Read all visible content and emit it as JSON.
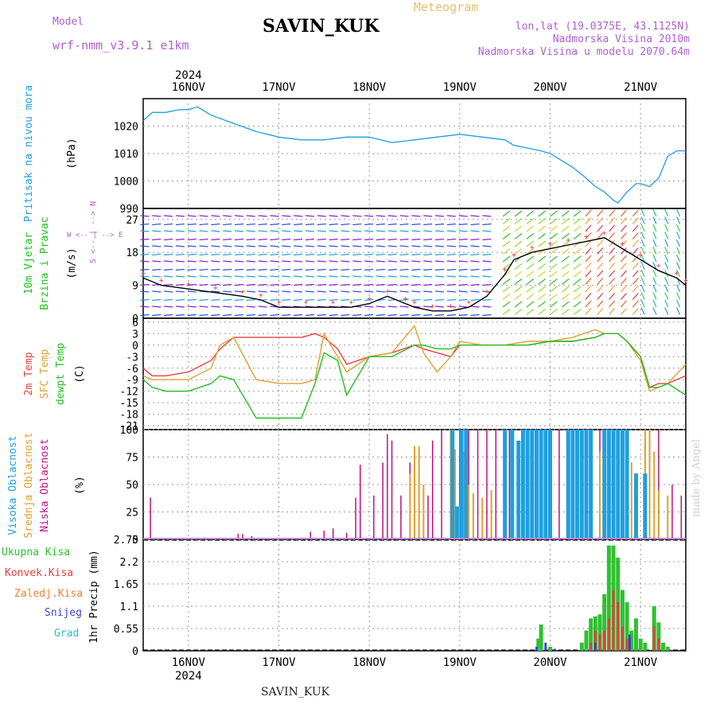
{
  "header": {
    "station": "SAVIN_KUK",
    "meteogram": "Meteogram",
    "model_label": "Model",
    "model_name": "wrf-nmm_v3.9.1 e1km",
    "lonlat": "lon,lat (19.0375E, 43.1125N)",
    "elevation": "Nadmorska Visina 2010m",
    "elevation_model": "Nadmorska Visina u modelu 2070.64m"
  },
  "footer": {
    "station": "SAVIN_KUK",
    "credit": "made by Angel"
  },
  "colors": {
    "pressure": "#1e9fe0",
    "temp2m": "#e84040",
    "sfc": "#e0a030",
    "dewpt": "#20c020",
    "high_cloud": "#1e9fe0",
    "mid_cloud": "#e0a030",
    "low_cloud": "#c01080",
    "total_precip": "#30c030",
    "conv_precip": "#e04040",
    "frozen_precip": "#f08030",
    "snow": "#4040d0",
    "graupel": "#30c0c0"
  },
  "chart_data": [
    {
      "type": "line",
      "id": "pressure",
      "ylabel_title": "Pritisak na nivou mora",
      "ylabel_unit": "(hPa)",
      "year": "2024",
      "ylim": [
        990,
        1030
      ],
      "yticks": [
        "990",
        "1000",
        "1010",
        "1020"
      ],
      "ytick_values": [
        990,
        1000,
        1010,
        1020
      ],
      "x_range_days": [
        15.5,
        21.5
      ],
      "days": [
        "16NOV",
        "17NOV",
        "18NOV",
        "19NOV",
        "20NOV",
        "21NOV"
      ],
      "x": [
        15.5,
        15.6,
        15.75,
        15.9,
        16.0,
        16.1,
        16.25,
        16.5,
        16.75,
        17.0,
        17.25,
        17.5,
        17.75,
        18.0,
        18.25,
        18.5,
        18.75,
        19.0,
        19.25,
        19.5,
        19.6,
        19.75,
        19.9,
        20.0,
        20.1,
        20.25,
        20.4,
        20.5,
        20.6,
        20.7,
        20.75,
        20.85,
        20.95,
        21.0,
        21.1,
        21.2,
        21.3,
        21.4,
        21.5
      ],
      "values": [
        1022,
        1025,
        1025,
        1026,
        1026,
        1027,
        1024,
        1021,
        1018,
        1016,
        1015,
        1015,
        1016,
        1016,
        1014,
        1015,
        1016,
        1017,
        1016,
        1015,
        1013,
        1012,
        1011,
        1010,
        1008,
        1005,
        1001,
        998,
        996,
        993,
        992,
        996,
        999,
        999,
        998,
        1001,
        1009,
        1011,
        1011
      ]
    },
    {
      "type": "line",
      "id": "wind",
      "ylabel_title": "10m Vjetar",
      "ylabel_title2": "Brzina i Pravac",
      "ylabel_unit": "(m/s)",
      "compass_ns": "S <-- | --> N",
      "compass_we": "W <-- | --> E",
      "ylim": [
        0,
        30
      ],
      "yticks": [
        "0",
        "9",
        "18",
        "27"
      ],
      "ytick_values": [
        0,
        9,
        18,
        27
      ],
      "x": [
        15.5,
        15.7,
        16.0,
        16.3,
        16.6,
        16.8,
        17.0,
        17.3,
        17.6,
        17.8,
        18.0,
        18.2,
        18.4,
        18.5,
        18.7,
        18.9,
        19.1,
        19.3,
        19.5,
        19.6,
        19.8,
        20.0,
        20.2,
        20.4,
        20.6,
        20.8,
        21.0,
        21.2,
        21.4,
        21.5
      ],
      "values": [
        11,
        9,
        8,
        7,
        6,
        5,
        3,
        3,
        3,
        3,
        4,
        6,
        4,
        3,
        2,
        2,
        3,
        6,
        12,
        16,
        18,
        19,
        20,
        21,
        22,
        19,
        16,
        13,
        11,
        9
      ]
    },
    {
      "type": "line",
      "id": "temperature",
      "ylabel_t2": "2m Temp",
      "ylabel_sfc": "SFC Temp",
      "ylabel_dew": "dewpt Temp",
      "ylabel_unit": "(C)",
      "ylim": [
        -22,
        7
      ],
      "yticks": [
        "-21",
        "-18",
        "-15",
        "-12",
        "-9",
        "-6",
        "-3",
        "0",
        "3",
        "6"
      ],
      "ytick_values": [
        -21,
        -18,
        -15,
        -12,
        -9,
        -6,
        -3,
        0,
        3,
        6
      ],
      "x": [
        15.5,
        15.6,
        15.75,
        16.0,
        16.25,
        16.35,
        16.5,
        16.75,
        17.0,
        17.25,
        17.4,
        17.5,
        17.65,
        17.75,
        18.0,
        18.25,
        18.5,
        18.6,
        18.75,
        18.9,
        19.0,
        19.25,
        19.5,
        19.75,
        20.0,
        20.25,
        20.5,
        20.6,
        20.75,
        20.85,
        21.0,
        21.1,
        21.2,
        21.3,
        21.5
      ],
      "series": [
        {
          "name": "2m Temp",
          "values": [
            -6,
            -8,
            -8,
            -7,
            -4,
            -1,
            2,
            2,
            2,
            2,
            3,
            2,
            -1,
            -5,
            -3,
            -2,
            0,
            -1,
            -2,
            -3,
            0,
            0,
            0,
            0,
            1,
            1,
            2,
            3,
            3,
            1,
            -3,
            -11,
            -10,
            -10,
            -8
          ]
        },
        {
          "name": "SFC Temp",
          "values": [
            -8,
            -9,
            -9,
            -9,
            -6,
            0,
            2,
            -9,
            -10,
            -10,
            -9,
            3,
            -3,
            -7,
            -3,
            -2,
            5,
            -2,
            -7,
            -3,
            1,
            0,
            0,
            1,
            1,
            2,
            4,
            3,
            3,
            1,
            -4,
            -12,
            -11,
            -10,
            -5
          ]
        },
        {
          "name": "dewpt Temp",
          "values": [
            -9,
            -11,
            -12,
            -12,
            -10,
            -8,
            -9,
            -19,
            -19,
            -19,
            -10,
            -2,
            -4,
            -13,
            -3,
            -3,
            0,
            0,
            -1,
            -1,
            0,
            0,
            0,
            0,
            1,
            1,
            2,
            3,
            3,
            1,
            -3,
            -11,
            -11,
            -10,
            -13
          ]
        }
      ]
    },
    {
      "type": "bar",
      "id": "clouds",
      "ylabel_high": "Visoka Oblacnost",
      "ylabel_mid": "Srednja Oblacnost",
      "ylabel_low": "Niska Oblacnost",
      "ylabel_unit": "(%)",
      "ylim": [
        0,
        100
      ],
      "yticks": [
        "0",
        "25",
        "50",
        "75",
        "100"
      ],
      "ytick_values": [
        0,
        25,
        50,
        75,
        100
      ],
      "series": [
        {
          "name": "Niska Oblacnost",
          "x": [
            15.58,
            16.55,
            16.6,
            16.7,
            17.35,
            17.5,
            17.6,
            17.75,
            17.85,
            17.9,
            18.05,
            18.15,
            18.2,
            18.25,
            18.35,
            18.45,
            18.5,
            18.55,
            18.65,
            18.7,
            18.8,
            18.9,
            19.0,
            19.1,
            19.2,
            19.3,
            19.4,
            19.55,
            19.7,
            19.9,
            20.1,
            20.3,
            20.4,
            20.55,
            20.7,
            20.85,
            20.95,
            21.05,
            21.2,
            21.35,
            21.45
          ],
          "values": [
            38,
            5,
            5,
            3,
            7,
            8,
            10,
            6,
            38,
            68,
            40,
            70,
            96,
            90,
            40,
            70,
            83,
            55,
            40,
            90,
            100,
            100,
            100,
            100,
            100,
            100,
            100,
            100,
            100,
            100,
            100,
            100,
            100,
            100,
            100,
            100,
            60,
            100,
            100,
            50,
            40
          ]
        },
        {
          "name": "Srednja Oblacnost",
          "x": [
            18.45,
            18.5,
            18.55,
            18.6,
            18.9,
            18.95,
            19.0,
            19.05,
            19.1,
            19.15,
            19.25,
            19.35,
            20.3,
            20.35,
            20.45,
            20.55,
            20.7,
            20.9,
            21.05,
            21.1,
            21.15,
            21.2,
            21.3
          ],
          "values": [
            60,
            85,
            85,
            50,
            100,
            82,
            30,
            80,
            50,
            42,
            38,
            45,
            100,
            100,
            80,
            80,
            100,
            70,
            100,
            100,
            80,
            45,
            40
          ]
        },
        {
          "name": "Visoka Oblacnost",
          "x": [
            18.92,
            18.97,
            19.02,
            19.07,
            19.5,
            19.58,
            19.65,
            19.7,
            19.75,
            19.8,
            19.85,
            19.9,
            19.95,
            20.0,
            20.2,
            20.25,
            20.3,
            20.35,
            20.4,
            20.45,
            20.6,
            20.65,
            20.7,
            20.75,
            20.8,
            20.85,
            20.95,
            21.05
          ],
          "values": [
            100,
            30,
            100,
            100,
            100,
            100,
            90,
            100,
            100,
            100,
            100,
            100,
            100,
            100,
            100,
            100,
            100,
            100,
            100,
            100,
            100,
            100,
            100,
            100,
            100,
            100,
            60,
            60
          ]
        }
      ]
    },
    {
      "type": "bar",
      "id": "precip",
      "legend": [
        "Ukupna Kisa",
        "Konvek.Kisa",
        "Zaledj.Kisa",
        "Snijeg",
        "Grad"
      ],
      "ylabel_unit": "1hr Precip (mm)",
      "ylim": [
        0,
        2.75
      ],
      "yticks": [
        "0",
        "0.55",
        "1.1",
        "1.65",
        "2.2",
        "2.75"
      ],
      "ytick_values": [
        0,
        0.55,
        1.1,
        1.65,
        2.2,
        2.75
      ],
      "series": [
        {
          "name": "Ukupna Kisa",
          "x": [
            19.87,
            19.9,
            20.0,
            20.35,
            20.4,
            20.45,
            20.5,
            20.55,
            20.6,
            20.65,
            20.7,
            20.75,
            20.8,
            20.85,
            20.9,
            20.95,
            21.0,
            21.05,
            21.15,
            21.2,
            21.25,
            21.3
          ],
          "values": [
            0.3,
            0.65,
            0.1,
            0.2,
            0.5,
            0.8,
            0.85,
            0.9,
            1.4,
            2.6,
            2.6,
            2.3,
            1.5,
            1.2,
            0.5,
            0.8,
            0.3,
            0.2,
            1.1,
            0.7,
            0.2,
            0.1
          ]
        },
        {
          "name": "Konvek.Kisa",
          "x": [
            20.45,
            20.5,
            20.55,
            20.6,
            20.65,
            20.7,
            20.75,
            20.8,
            20.85,
            21.15,
            21.2
          ],
          "values": [
            0.2,
            0.5,
            0.4,
            0.5,
            0.8,
            1.5,
            1.2,
            0.6,
            0.3,
            0.6,
            0.3
          ]
        },
        {
          "name": "Snijeg",
          "x": [
            19.85,
            19.95,
            20.05,
            20.5,
            20.88
          ],
          "values": [
            0.1,
            0.2,
            0.05,
            0.2,
            0.4
          ]
        },
        {
          "name": "Grad",
          "x": [
            19.88,
            20.4
          ],
          "values": [
            0.05,
            0.05
          ]
        }
      ]
    }
  ]
}
